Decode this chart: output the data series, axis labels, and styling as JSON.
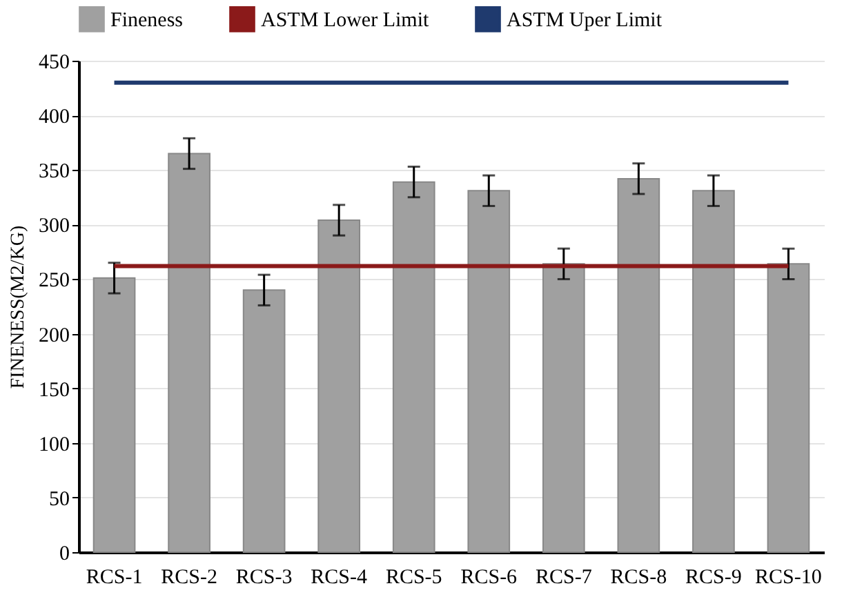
{
  "chart_data": {
    "type": "bar",
    "ylabel": "FINENESS(M2/KG)",
    "categories": [
      "RCS-1",
      "RCS-2",
      "RCS-3",
      "RCS-4",
      "RCS-5",
      "RCS-6",
      "RCS-7",
      "RCS-8",
      "RCS-9",
      "RCS-10"
    ],
    "series": [
      {
        "name": "Fineness",
        "color": "#a0a0a0",
        "values": [
          251,
          365,
          240,
          304,
          339,
          331,
          264,
          342,
          331,
          264
        ],
        "errors": [
          14,
          14,
          14,
          14,
          14,
          14,
          14,
          14,
          14,
          14
        ]
      },
      {
        "name": "ASTM Lower Limit",
        "type": "line",
        "color": "#8b1a1a",
        "values": [
          262,
          262,
          262,
          262,
          262,
          262,
          262,
          262,
          262,
          262
        ]
      },
      {
        "name": "ASTM Uper Limit",
        "type": "line",
        "color": "#1f3a6e",
        "values": [
          430,
          430,
          430,
          430,
          430,
          430,
          430,
          430,
          430,
          430
        ]
      }
    ],
    "ylim": [
      0,
      450
    ],
    "yticks": [
      0,
      50,
      100,
      150,
      200,
      250,
      300,
      350,
      400,
      450
    ],
    "grid": "y",
    "legend": "top",
    "marker": "none"
  }
}
